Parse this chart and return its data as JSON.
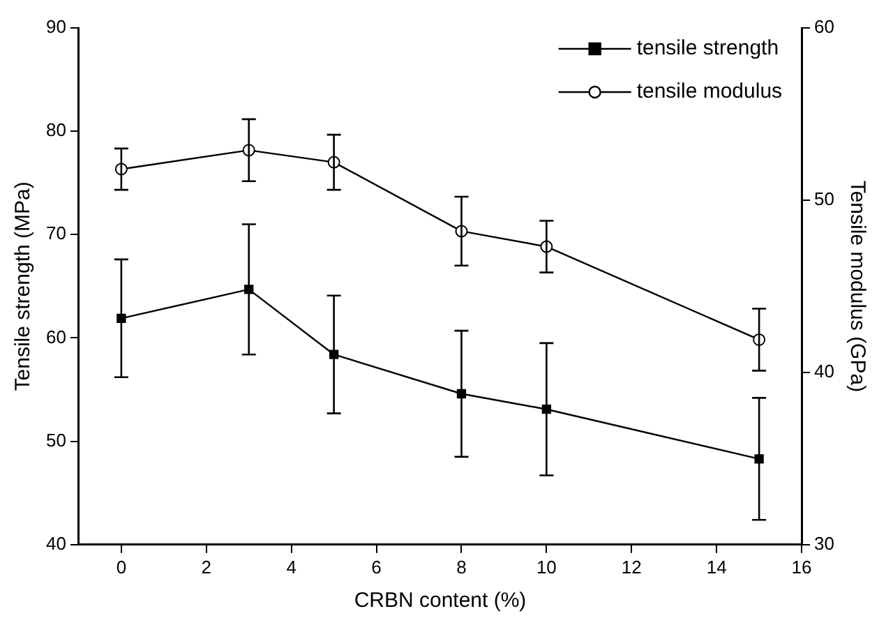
{
  "chart_data": {
    "type": "line",
    "xlabel": "CRBN content (%)",
    "ylabel": "Tensile strength (MPa)",
    "y2label": "Tensile modulus (GPa)",
    "x": [
      0,
      3,
      5,
      8,
      10,
      15
    ],
    "series": [
      {
        "name": "tensile strength",
        "color": "#000000",
        "marker": "square",
        "values": [
          61.9,
          64.7,
          58.4,
          54.6,
          53.1,
          48.3
        ],
        "errors": [
          5.7,
          6.3,
          5.7,
          6.1,
          6.4,
          5.9
        ]
      },
      {
        "name": "tensile modulus",
        "color": "#000000",
        "marker": "circle",
        "axis": "y2",
        "values": [
          51.8,
          52.9,
          52.2,
          48.2,
          47.3,
          41.9
        ],
        "errors": [
          1.2,
          1.8,
          1.6,
          2.0,
          1.5,
          1.8
        ]
      }
    ],
    "xlim": [
      -1,
      16
    ],
    "xticks": [
      0,
      2,
      4,
      6,
      8,
      10,
      12,
      14,
      16
    ],
    "ylim": [
      40,
      90
    ],
    "yticks": [
      40,
      50,
      60,
      70,
      80,
      90
    ],
    "y2lim": [
      30,
      60
    ],
    "y2ticks": [
      30,
      40,
      50,
      60
    ],
    "grid": false,
    "legend": "top right",
    "line_style": "solid"
  }
}
